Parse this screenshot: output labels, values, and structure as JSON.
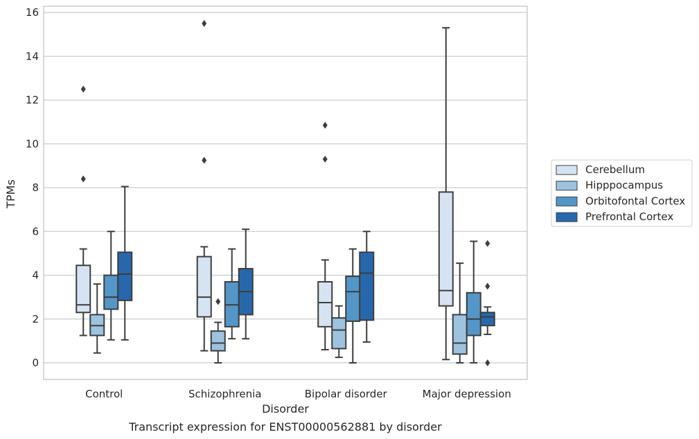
{
  "caption": "Transcript expression for ENST00000562881 by disorder",
  "chart_data": {
    "type": "box",
    "title": "",
    "xlabel": "Disorder",
    "ylabel": "TPMs",
    "ylim": [
      -0.75,
      16.3
    ],
    "yticks": [
      0,
      2,
      4,
      6,
      8,
      10,
      12,
      14,
      16
    ],
    "grid": "horizontal",
    "legend_placement": "right, outside plot",
    "categories": [
      "Control",
      "Schizophrenia",
      "Bipolar disorder",
      "Major depression"
    ],
    "series": [
      {
        "name": "Cerebellum",
        "color": "#d5e3f2",
        "boxes": [
          {
            "whisker_low": 1.25,
            "q1": 2.3,
            "median": 2.65,
            "q3": 4.45,
            "whisker_high": 5.2,
            "outliers": [
              8.4,
              12.5
            ]
          },
          {
            "whisker_low": 0.55,
            "q1": 2.1,
            "median": 3.0,
            "q3": 4.85,
            "whisker_high": 5.3,
            "outliers": [
              9.25,
              15.5
            ]
          },
          {
            "whisker_low": 0.6,
            "q1": 1.65,
            "median": 2.75,
            "q3": 3.7,
            "whisker_high": 4.7,
            "outliers": [
              9.3,
              10.85
            ]
          },
          {
            "whisker_low": 0.15,
            "q1": 2.6,
            "median": 3.3,
            "q3": 7.8,
            "whisker_high": 15.3,
            "outliers": []
          }
        ]
      },
      {
        "name": "Hipppocampus",
        "color": "#9dc3df",
        "boxes": [
          {
            "whisker_low": 0.45,
            "q1": 1.25,
            "median": 1.7,
            "q3": 2.2,
            "whisker_high": 3.6,
            "outliers": []
          },
          {
            "whisker_low": 0.0,
            "q1": 0.55,
            "median": 0.9,
            "q3": 1.45,
            "whisker_high": 1.85,
            "outliers": [
              2.8
            ]
          },
          {
            "whisker_low": 0.25,
            "q1": 0.65,
            "median": 1.5,
            "q3": 2.05,
            "whisker_high": 2.6,
            "outliers": []
          },
          {
            "whisker_low": 0.0,
            "q1": 0.4,
            "median": 0.9,
            "q3": 2.2,
            "whisker_high": 4.55,
            "outliers": []
          }
        ]
      },
      {
        "name": "Orbitofontal Cortex",
        "color": "#5496c7",
        "boxes": [
          {
            "whisker_low": 1.05,
            "q1": 2.45,
            "median": 3.0,
            "q3": 4.0,
            "whisker_high": 6.0,
            "outliers": []
          },
          {
            "whisker_low": 1.1,
            "q1": 1.65,
            "median": 2.65,
            "q3": 3.7,
            "whisker_high": 5.2,
            "outliers": []
          },
          {
            "whisker_low": 0.0,
            "q1": 1.9,
            "median": 3.25,
            "q3": 3.95,
            "whisker_high": 5.2,
            "outliers": []
          },
          {
            "whisker_low": 0.0,
            "q1": 1.25,
            "median": 2.0,
            "q3": 3.2,
            "whisker_high": 5.55,
            "outliers": []
          }
        ]
      },
      {
        "name": "Prefrontal Cortex",
        "color": "#2768ad",
        "boxes": [
          {
            "whisker_low": 1.05,
            "q1": 2.85,
            "median": 4.05,
            "q3": 5.05,
            "whisker_high": 8.05,
            "outliers": []
          },
          {
            "whisker_low": 1.1,
            "q1": 2.2,
            "median": 3.25,
            "q3": 4.3,
            "whisker_high": 6.1,
            "outliers": []
          },
          {
            "whisker_low": 0.95,
            "q1": 1.95,
            "median": 4.1,
            "q3": 5.05,
            "whisker_high": 6.0,
            "outliers": []
          },
          {
            "whisker_low": 1.3,
            "q1": 1.7,
            "median": 2.1,
            "q3": 2.3,
            "whisker_high": 2.55,
            "outliers": [
              0.0,
              3.5,
              5.45
            ]
          }
        ]
      }
    ]
  }
}
